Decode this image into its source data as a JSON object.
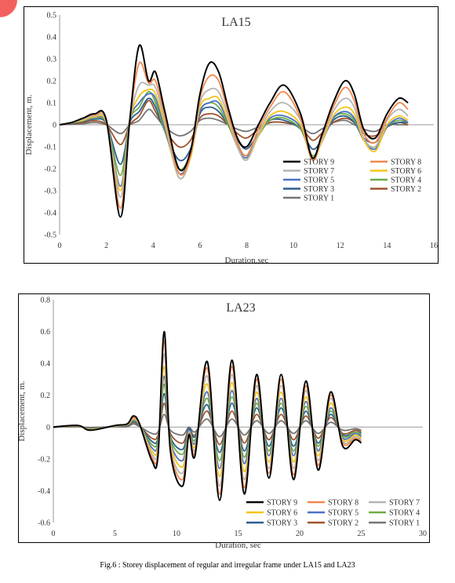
{
  "caption": "Fig.6 : Storey displacement of regular and irregular frame under LA15 and LA23",
  "series_styles": {
    "STORY 9": "#000000",
    "STORY 8": "#f4874b",
    "STORY 7": "#b4b4b4",
    "STORY 6": "#f5c518",
    "STORY 5": "#4a72c4",
    "STORY 4": "#6fad47",
    "STORY 3": "#2a5f8f",
    "STORY 2": "#a0522d",
    "STORY 1": "#757575"
  },
  "chart_data": [
    {
      "type": "line",
      "title": "LA15",
      "xlabel": "Duration,sec",
      "ylabel": "Displacement, m.",
      "xlim": [
        0,
        16
      ],
      "ylim": [
        -0.5,
        0.5
      ],
      "xticks": [
        "0",
        "2",
        "4",
        "6",
        "8",
        "10",
        "12",
        "14",
        "16"
      ],
      "yticks": [
        "0.5",
        "0.4",
        "0.3",
        "0.2",
        "0.1",
        "0",
        "-0.1",
        "-0.2",
        "-0.3",
        "-0.4",
        "-0.5"
      ],
      "legend_position": "lower-right",
      "legend_columns": 2,
      "x": [
        0,
        0.5,
        1.0,
        1.5,
        2.0,
        2.6,
        3.0,
        3.4,
        3.8,
        4.1,
        4.5,
        5.1,
        5.6,
        6.0,
        6.4,
        6.8,
        7.2,
        7.6,
        8.0,
        8.5,
        9.0,
        9.6,
        10.3,
        10.8,
        11.2,
        11.7,
        12.2,
        12.6,
        13.0,
        13.5,
        14.0,
        14.5,
        14.9
      ],
      "series": [
        {
          "name": "STORY 9",
          "values": [
            0,
            0.01,
            0.03,
            0.05,
            0.02,
            -0.42,
            0.02,
            0.36,
            0.2,
            0.24,
            0.06,
            -0.2,
            -0.12,
            0.14,
            0.28,
            0.24,
            0.08,
            -0.06,
            -0.1,
            0.0,
            0.1,
            0.18,
            0.05,
            -0.15,
            -0.05,
            0.1,
            0.2,
            0.14,
            -0.02,
            -0.06,
            0.05,
            0.12,
            0.1
          ]
        },
        {
          "name": "STORY 8",
          "values": [
            0,
            0.01,
            0.03,
            0.045,
            0.02,
            -0.38,
            0.02,
            0.28,
            0.19,
            0.2,
            0.04,
            -0.22,
            -0.14,
            0.12,
            0.22,
            0.2,
            0.06,
            -0.08,
            -0.14,
            -0.02,
            0.08,
            0.15,
            0.03,
            -0.16,
            -0.06,
            0.08,
            0.17,
            0.11,
            -0.04,
            -0.08,
            0.03,
            0.1,
            0.07
          ]
        },
        {
          "name": "STORY 7",
          "values": [
            0,
            0.01,
            0.025,
            0.04,
            0.015,
            -0.33,
            0.02,
            0.18,
            0.18,
            0.17,
            0.02,
            -0.24,
            -0.14,
            0.1,
            0.16,
            0.15,
            0.04,
            -0.1,
            -0.16,
            -0.04,
            0.06,
            0.1,
            0.02,
            -0.16,
            -0.07,
            0.06,
            0.12,
            0.08,
            -0.06,
            -0.1,
            0.02,
            0.07,
            0.04
          ]
        },
        {
          "name": "STORY 6",
          "values": [
            0,
            0.01,
            0.02,
            0.035,
            0.01,
            -0.3,
            0.02,
            0.13,
            0.16,
            0.14,
            0.0,
            -0.24,
            -0.15,
            0.08,
            0.12,
            0.12,
            0.02,
            -0.1,
            -0.16,
            -0.05,
            0.04,
            0.06,
            0.0,
            -0.16,
            -0.08,
            0.04,
            0.08,
            0.05,
            -0.07,
            -0.12,
            0.0,
            0.04,
            0.02
          ]
        },
        {
          "name": "STORY 5",
          "values": [
            0,
            0.01,
            0.02,
            0.03,
            0.01,
            -0.28,
            0.02,
            0.1,
            0.14,
            0.12,
            -0.02,
            -0.22,
            -0.14,
            0.06,
            0.1,
            0.1,
            0.01,
            -0.1,
            -0.15,
            -0.05,
            0.03,
            0.04,
            -0.01,
            -0.15,
            -0.08,
            0.03,
            0.06,
            0.03,
            -0.07,
            -0.11,
            -0.01,
            0.03,
            0.01
          ]
        },
        {
          "name": "STORY 4",
          "values": [
            0,
            0.008,
            0.018,
            0.028,
            0.008,
            -0.23,
            0.02,
            0.08,
            0.15,
            0.1,
            -0.03,
            -0.2,
            -0.13,
            0.06,
            0.1,
            0.08,
            0.0,
            -0.09,
            -0.14,
            -0.05,
            0.02,
            0.03,
            -0.02,
            -0.14,
            -0.08,
            0.03,
            0.05,
            0.02,
            -0.07,
            -0.1,
            -0.01,
            0.02,
            0.01
          ]
        },
        {
          "name": "STORY 3",
          "values": [
            0,
            0.006,
            0.015,
            0.025,
            0.005,
            -0.18,
            0.01,
            0.06,
            0.12,
            0.08,
            -0.03,
            -0.16,
            -0.11,
            0.05,
            0.08,
            0.06,
            0.0,
            -0.07,
            -0.11,
            -0.04,
            0.02,
            0.02,
            -0.02,
            -0.11,
            -0.07,
            0.02,
            0.04,
            0.01,
            -0.06,
            -0.08,
            -0.01,
            0.01,
            0.01
          ]
        },
        {
          "name": "STORY 2",
          "values": [
            0,
            0.004,
            0.01,
            0.018,
            0.0,
            -0.09,
            0.0,
            0.04,
            0.11,
            0.06,
            -0.02,
            -0.1,
            -0.07,
            0.03,
            0.05,
            0.04,
            0.0,
            -0.04,
            -0.06,
            -0.02,
            0.01,
            0.01,
            -0.01,
            -0.07,
            -0.04,
            0.01,
            0.03,
            0.01,
            -0.04,
            -0.05,
            -0.01,
            0.01,
            0.0
          ]
        },
        {
          "name": "STORY 1",
          "values": [
            0,
            0.002,
            0.005,
            0.01,
            0.0,
            -0.04,
            0.0,
            0.02,
            0.07,
            0.04,
            -0.01,
            -0.05,
            -0.03,
            0.02,
            0.03,
            0.02,
            0.0,
            -0.02,
            -0.03,
            -0.01,
            0.01,
            0.01,
            -0.01,
            -0.04,
            -0.02,
            0.01,
            0.02,
            0.0,
            -0.02,
            -0.03,
            0.0,
            0.0,
            0.0
          ]
        }
      ]
    },
    {
      "type": "line",
      "title": "LA23",
      "xlabel": "Duration, sec",
      "ylabel": "Displacement, m.",
      "xlim": [
        0,
        30
      ],
      "ylim": [
        -0.6,
        0.8
      ],
      "xticks": [
        "0",
        "5",
        "10",
        "15",
        "20",
        "25",
        "30"
      ],
      "yticks": [
        "0.8",
        "0.6",
        "0.4",
        "0.2",
        "0",
        "-0.2",
        "-0.4",
        "-0.6"
      ],
      "legend_position": "lower-right",
      "legend_columns": 3,
      "x": [
        0,
        2,
        3,
        5,
        6,
        6.5,
        7,
        8,
        8.5,
        9,
        9.5,
        10.5,
        11,
        11.5,
        12.5,
        13.5,
        14.5,
        15.5,
        16.5,
        17.5,
        18.5,
        19.5,
        20.5,
        21.5,
        22.5,
        23.5,
        24.5,
        25
      ],
      "series": [
        {
          "name": "STORY 9",
          "values": [
            0,
            0.01,
            -0.02,
            0.01,
            0.02,
            0.07,
            0.02,
            -0.21,
            -0.18,
            0.6,
            -0.15,
            -0.37,
            -0.05,
            -0.18,
            0.41,
            -0.46,
            0.42,
            -0.42,
            0.33,
            -0.32,
            0.33,
            -0.33,
            0.29,
            -0.27,
            0.22,
            -0.12,
            -0.08,
            -0.1
          ]
        },
        {
          "name": "STORY 8",
          "values": [
            0,
            0.01,
            -0.02,
            0.01,
            0.02,
            0.06,
            0.02,
            -0.19,
            -0.16,
            0.54,
            -0.13,
            -0.33,
            -0.04,
            -0.16,
            0.37,
            -0.42,
            0.38,
            -0.38,
            0.3,
            -0.29,
            0.3,
            -0.3,
            0.26,
            -0.24,
            0.2,
            -0.1,
            -0.07,
            -0.09
          ]
        },
        {
          "name": "STORY 7",
          "values": [
            0,
            0.008,
            -0.018,
            0.008,
            0.018,
            0.055,
            0.018,
            -0.17,
            -0.14,
            0.46,
            -0.12,
            -0.29,
            -0.03,
            -0.14,
            0.32,
            -0.37,
            0.33,
            -0.33,
            0.26,
            -0.26,
            0.26,
            -0.26,
            0.23,
            -0.21,
            0.18,
            -0.09,
            -0.06,
            -0.08
          ]
        },
        {
          "name": "STORY 6",
          "values": [
            0,
            0.007,
            -0.015,
            0.007,
            0.015,
            0.05,
            0.015,
            -0.15,
            -0.12,
            0.38,
            -0.1,
            -0.25,
            -0.03,
            -0.12,
            0.27,
            -0.31,
            0.28,
            -0.28,
            0.22,
            -0.22,
            0.22,
            -0.22,
            0.19,
            -0.18,
            0.15,
            -0.08,
            -0.05,
            -0.07
          ]
        },
        {
          "name": "STORY 5",
          "values": [
            0,
            0.006,
            -0.012,
            0.006,
            0.012,
            0.045,
            0.012,
            -0.13,
            -0.1,
            0.32,
            -0.09,
            -0.21,
            -0.02,
            -0.1,
            0.22,
            -0.26,
            0.23,
            -0.23,
            0.18,
            -0.18,
            0.18,
            -0.18,
            0.16,
            -0.15,
            0.12,
            -0.07,
            -0.04,
            -0.06
          ]
        },
        {
          "name": "STORY 4",
          "values": [
            0,
            0.005,
            -0.01,
            0.005,
            0.01,
            0.04,
            0.01,
            -0.11,
            -0.08,
            0.27,
            -0.07,
            -0.17,
            -0.02,
            -0.08,
            0.18,
            -0.21,
            0.19,
            -0.19,
            0.15,
            -0.15,
            0.15,
            -0.15,
            0.13,
            -0.12,
            0.1,
            -0.06,
            -0.03,
            -0.05
          ]
        },
        {
          "name": "STORY 3",
          "values": [
            0,
            0.004,
            -0.008,
            0.004,
            0.008,
            0.035,
            0.008,
            -0.09,
            -0.07,
            0.21,
            -0.06,
            -0.14,
            -0.01,
            -0.06,
            0.14,
            -0.16,
            0.15,
            -0.15,
            0.12,
            -0.12,
            0.12,
            -0.12,
            0.1,
            -0.1,
            0.08,
            -0.05,
            -0.03,
            -0.04
          ]
        },
        {
          "name": "STORY 2",
          "values": [
            0,
            0.003,
            -0.006,
            0.003,
            0.006,
            0.03,
            0.006,
            -0.07,
            -0.05,
            0.15,
            -0.04,
            -0.1,
            -0.01,
            -0.05,
            0.1,
            -0.11,
            0.1,
            -0.1,
            0.08,
            -0.08,
            0.08,
            -0.08,
            0.07,
            -0.07,
            0.06,
            -0.04,
            -0.02,
            -0.03
          ]
        },
        {
          "name": "STORY 1",
          "values": [
            0,
            0.002,
            -0.003,
            0.002,
            0.003,
            0.02,
            0.003,
            -0.04,
            -0.03,
            0.08,
            -0.02,
            -0.05,
            0.0,
            -0.03,
            0.05,
            -0.06,
            0.05,
            -0.05,
            0.04,
            -0.04,
            0.04,
            -0.04,
            0.04,
            -0.04,
            0.03,
            -0.02,
            -0.01,
            -0.02
          ]
        }
      ]
    }
  ]
}
